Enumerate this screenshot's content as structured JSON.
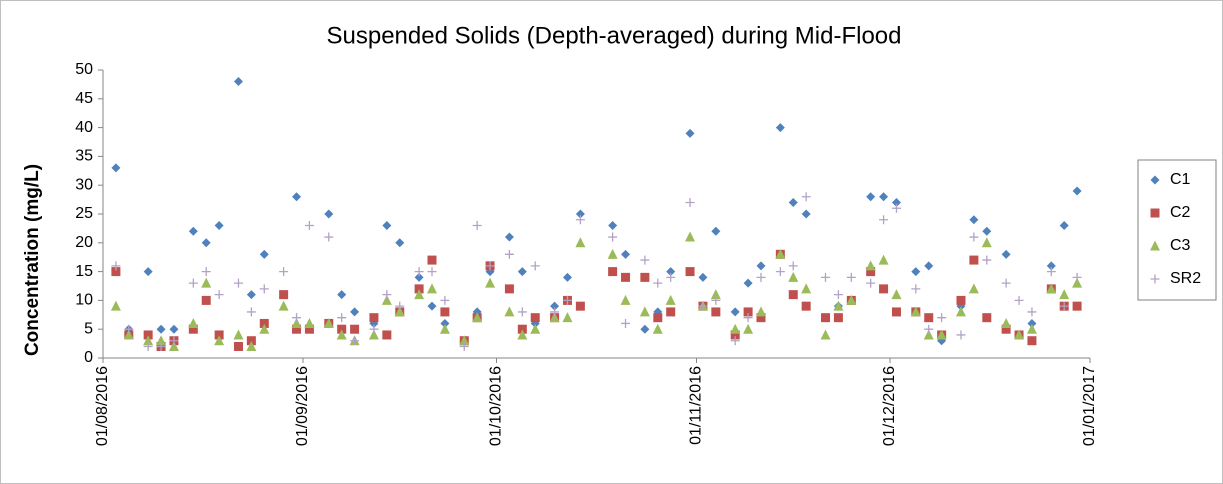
{
  "chart_data": {
    "type": "scatter",
    "title": "Suspended Solids (Depth-averaged) during Mid-Flood",
    "y_label": "Concentration (mg/L)",
    "x": [
      "2016-08-03",
      "2016-08-05",
      "2016-08-08",
      "2016-08-10",
      "2016-08-12",
      "2016-08-15",
      "2016-08-17",
      "2016-08-19",
      "2016-08-22",
      "2016-08-24",
      "2016-08-26",
      "2016-08-29",
      "2016-08-31",
      "2016-09-02",
      "2016-09-05",
      "2016-09-07",
      "2016-09-09",
      "2016-09-12",
      "2016-09-14",
      "2016-09-16",
      "2016-09-19",
      "2016-09-21",
      "2016-09-23",
      "2016-09-26",
      "2016-09-28",
      "2016-09-30",
      "2016-10-03",
      "2016-10-05",
      "2016-10-07",
      "2016-10-10",
      "2016-10-12",
      "2016-10-14",
      "2016-10-19",
      "2016-10-21",
      "2016-10-24",
      "2016-10-26",
      "2016-10-28",
      "2016-10-31",
      "2016-11-02",
      "2016-11-04",
      "2016-11-07",
      "2016-11-09",
      "2016-11-11",
      "2016-11-14",
      "2016-11-16",
      "2016-11-18",
      "2016-11-21",
      "2016-11-23",
      "2016-11-25",
      "2016-11-28",
      "2016-11-30",
      "2016-12-02",
      "2016-12-05",
      "2016-12-07",
      "2016-12-09",
      "2016-12-12",
      "2016-12-14",
      "2016-12-16",
      "2016-12-19",
      "2016-12-21",
      "2016-12-23",
      "2016-12-26",
      "2016-12-28",
      "2016-12-30"
    ],
    "series": [
      {
        "name": "C1",
        "color": "#4f81bd",
        "marker": "diamond",
        "values": [
          33,
          5,
          15,
          5,
          5,
          22,
          20,
          23,
          48,
          11,
          18,
          null,
          28,
          null,
          25,
          11,
          8,
          6,
          23,
          20,
          14,
          9,
          6,
          null,
          8,
          15,
          21,
          15,
          6,
          9,
          14,
          25,
          23,
          18,
          5,
          8,
          15,
          39,
          14,
          22,
          8,
          13,
          16,
          40,
          27,
          25,
          null,
          9,
          10,
          28,
          28,
          27,
          15,
          16,
          3,
          9,
          24,
          22,
          18,
          null,
          6,
          16,
          23,
          29
        ]
      },
      {
        "name": "C2",
        "color": "#c0504d",
        "marker": "square",
        "values": [
          15,
          4,
          4,
          2,
          3,
          5,
          10,
          4,
          2,
          3,
          6,
          11,
          5,
          5,
          6,
          5,
          5,
          7,
          4,
          8,
          12,
          17,
          8,
          3,
          7,
          16,
          12,
          5,
          7,
          7,
          10,
          9,
          15,
          14,
          14,
          7,
          8,
          15,
          9,
          8,
          4,
          8,
          7,
          18,
          11,
          9,
          7,
          7,
          10,
          15,
          12,
          8,
          8,
          7,
          4,
          10,
          17,
          7,
          5,
          4,
          3,
          12,
          9,
          9
        ]
      },
      {
        "name": "C3",
        "color": "#9bbb59",
        "marker": "triangle",
        "values": [
          9,
          4,
          3,
          3,
          2,
          6,
          13,
          3,
          4,
          2,
          5,
          9,
          6,
          6,
          6,
          4,
          3,
          4,
          10,
          8,
          11,
          12,
          5,
          3,
          7,
          13,
          8,
          4,
          5,
          7,
          7,
          20,
          18,
          10,
          8,
          5,
          10,
          21,
          9,
          11,
          5,
          5,
          8,
          18,
          14,
          12,
          4,
          9,
          10,
          16,
          17,
          11,
          8,
          4,
          4,
          8,
          12,
          20,
          6,
          4,
          5,
          12,
          11,
          13
        ]
      },
      {
        "name": "SR2",
        "color": "#b3a2c7",
        "marker": "plus",
        "values": [
          16,
          5,
          2,
          2,
          3,
          13,
          15,
          11,
          13,
          8,
          12,
          15,
          7,
          23,
          21,
          7,
          3,
          5,
          11,
          9,
          15,
          15,
          10,
          2,
          23,
          16,
          18,
          8,
          16,
          8,
          10,
          24,
          21,
          6,
          17,
          13,
          14,
          27,
          9,
          10,
          3,
          7,
          14,
          15,
          16,
          28,
          14,
          11,
          14,
          13,
          24,
          26,
          12,
          5,
          7,
          4,
          21,
          17,
          13,
          10,
          8,
          15,
          9,
          14
        ]
      }
    ],
    "xlim": [
      "2016-08-01",
      "2017-01-01"
    ],
    "xticks": [
      {
        "value": "2016-08-01",
        "label": "01/08/2016"
      },
      {
        "value": "2016-09-01",
        "label": "01/09/2016"
      },
      {
        "value": "2016-10-01",
        "label": "01/10/2016"
      },
      {
        "value": "2016-11-01",
        "label": "01/11/2016"
      },
      {
        "value": "2016-12-01",
        "label": "01/12/2016"
      },
      {
        "value": "2017-01-01",
        "label": "01/01/2017"
      }
    ],
    "ylim": [
      0,
      50
    ],
    "yticks": [
      0,
      5,
      10,
      15,
      20,
      25,
      30,
      35,
      40,
      45,
      50
    ],
    "grid": false,
    "legend": "right"
  }
}
